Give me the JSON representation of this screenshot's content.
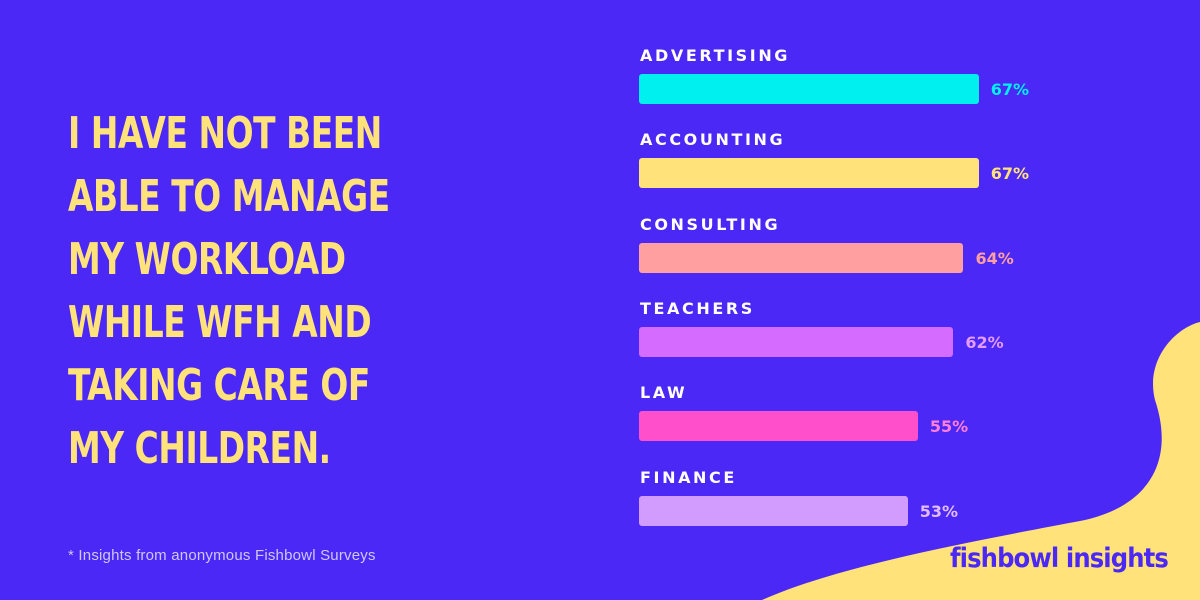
{
  "headline": "I have not been able to manage my workload while WFH and taking care of my children.",
  "headline_lines": [
    "I HAVE NOT BEEN",
    "ABLE TO MANAGE",
    "MY WORKLOAD",
    "WHILE WFH AND",
    "TAKING CARE OF",
    "MY CHILDREN."
  ],
  "footnote": "* Insights from anonymous Fishbowl Surveys",
  "brand": "fishbowl insights",
  "colors": {
    "background": "#4b28f5",
    "headline": "#ffe27a",
    "blob": "#ffe27a"
  },
  "chart_data": {
    "type": "bar",
    "orientation": "horizontal",
    "categories": [
      "ADVERTISING",
      "ACCOUNTING",
      "CONSULTING",
      "TEACHERS",
      "LAW",
      "FINANCE"
    ],
    "values": [
      67,
      67,
      64,
      62,
      55,
      53
    ],
    "value_labels": [
      "67%",
      "67%",
      "64%",
      "62%",
      "55%",
      "53%"
    ],
    "unit": "%",
    "xlim": [
      0,
      100
    ],
    "grid": false,
    "legend": "none",
    "bar_colors": [
      "#00f0f0",
      "#ffe27a",
      "#ff9f9f",
      "#d56bff",
      "#ff4fcb",
      "#d29cff"
    ],
    "label_colors": [
      "#00f0f0",
      "#ffe27a",
      "#ff9f9f",
      "#e49cff",
      "#ff7fd6",
      "#e2bcff"
    ]
  }
}
